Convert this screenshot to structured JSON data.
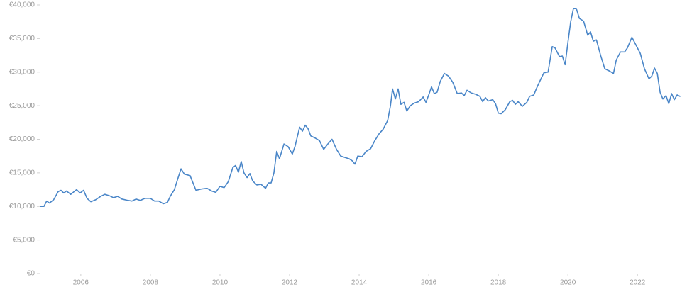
{
  "chart_data": {
    "type": "line",
    "x": [
      2004.84,
      2004.94,
      2005.02,
      2005.1,
      2005.22,
      2005.35,
      2005.43,
      2005.51,
      2005.59,
      2005.71,
      2005.88,
      2005.98,
      2006.08,
      2006.18,
      2006.29,
      2006.43,
      2006.57,
      2006.69,
      2006.82,
      2006.94,
      2007.06,
      2007.18,
      2007.35,
      2007.47,
      2007.59,
      2007.71,
      2007.84,
      2008.0,
      2008.12,
      2008.24,
      2008.37,
      2008.49,
      2008.57,
      2008.69,
      2008.78,
      2008.88,
      2008.98,
      2009.14,
      2009.31,
      2009.47,
      2009.63,
      2009.76,
      2009.88,
      2010.0,
      2010.12,
      2010.24,
      2010.37,
      2010.45,
      2010.53,
      2010.61,
      2010.69,
      2010.78,
      2010.86,
      2010.94,
      2011.06,
      2011.18,
      2011.31,
      2011.39,
      2011.47,
      2011.55,
      2011.63,
      2011.71,
      2011.84,
      2011.96,
      2012.08,
      2012.16,
      2012.29,
      2012.37,
      2012.45,
      2012.53,
      2012.61,
      2012.73,
      2012.86,
      2012.98,
      2013.1,
      2013.22,
      2013.35,
      2013.47,
      2013.59,
      2013.71,
      2013.8,
      2013.88,
      2013.96,
      2014.08,
      2014.2,
      2014.33,
      2014.45,
      2014.57,
      2014.69,
      2014.82,
      2014.9,
      2014.96,
      2015.04,
      2015.12,
      2015.2,
      2015.29,
      2015.37,
      2015.47,
      2015.59,
      2015.71,
      2015.84,
      2015.92,
      2016.0,
      2016.08,
      2016.16,
      2016.24,
      2016.33,
      2016.45,
      2016.57,
      2016.69,
      2016.82,
      2016.94,
      2017.02,
      2017.1,
      2017.22,
      2017.35,
      2017.47,
      2017.55,
      2017.63,
      2017.71,
      2017.84,
      2017.92,
      2018.0,
      2018.08,
      2018.2,
      2018.33,
      2018.41,
      2018.49,
      2018.57,
      2018.69,
      2018.82,
      2018.9,
      2019.02,
      2019.1,
      2019.18,
      2019.31,
      2019.43,
      2019.55,
      2019.63,
      2019.76,
      2019.84,
      2019.92,
      2020.0,
      2020.08,
      2020.16,
      2020.24,
      2020.33,
      2020.45,
      2020.57,
      2020.65,
      2020.73,
      2020.82,
      2020.94,
      2021.06,
      2021.18,
      2021.31,
      2021.39,
      2021.51,
      2021.63,
      2021.71,
      2021.84,
      2021.96,
      2022.08,
      2022.2,
      2022.33,
      2022.41,
      2022.49,
      2022.57,
      2022.65,
      2022.73,
      2022.82,
      2022.9,
      2022.98,
      2023.06,
      2023.14,
      2023.22
    ],
    "series": [
      {
        "color": "#4a86c8",
        "values": [
          10000,
          10000,
          10800,
          10500,
          11000,
          12200,
          12400,
          12000,
          12300,
          11800,
          12500,
          12000,
          12400,
          11200,
          10700,
          11000,
          11500,
          11800,
          11600,
          11300,
          11500,
          11100,
          10900,
          10800,
          11100,
          10900,
          11200,
          11200,
          10800,
          10800,
          10400,
          10600,
          11500,
          12500,
          14000,
          15600,
          14800,
          14600,
          12400,
          12600,
          12700,
          12300,
          12100,
          13000,
          12800,
          13700,
          15800,
          16100,
          15100,
          16700,
          15000,
          14300,
          14900,
          13800,
          13200,
          13300,
          12700,
          13500,
          13500,
          15000,
          18200,
          17100,
          19300,
          18900,
          17800,
          19000,
          21800,
          21200,
          22100,
          21600,
          20500,
          20200,
          19800,
          18500,
          19300,
          20000,
          18500,
          17500,
          17300,
          17100,
          16800,
          16300,
          17500,
          17400,
          18200,
          18600,
          19800,
          20800,
          21500,
          22800,
          25000,
          27500,
          26000,
          27500,
          25200,
          25500,
          24200,
          25000,
          25400,
          25600,
          26300,
          25500,
          26600,
          27800,
          26800,
          27000,
          28600,
          29800,
          29400,
          28500,
          26800,
          26900,
          26500,
          27300,
          26900,
          26700,
          26400,
          25600,
          26200,
          25700,
          25900,
          25300,
          23900,
          23800,
          24400,
          25600,
          25800,
          25200,
          25600,
          24900,
          25500,
          26400,
          26600,
          27600,
          28500,
          29900,
          30000,
          33800,
          33600,
          32300,
          32400,
          31100,
          34400,
          37500,
          39500,
          39500,
          38000,
          37600,
          35500,
          36000,
          34600,
          34800,
          32500,
          30500,
          30200,
          29800,
          31800,
          33000,
          33000,
          33600,
          35200,
          34000,
          32800,
          30500,
          29000,
          29400,
          30600,
          29800,
          27000,
          26000,
          26500,
          25300,
          26800,
          25900,
          26600,
          26400
        ]
      }
    ],
    "xlim": [
      2004.84,
      2023.24
    ],
    "xticks": [
      2006,
      2008,
      2010,
      2012,
      2014,
      2016,
      2018,
      2020,
      2022
    ],
    "ylim": [
      0,
      40000
    ],
    "yticks": [
      {
        "value": 0,
        "label": "€0"
      },
      {
        "value": 5000,
        "label": "€5,000"
      },
      {
        "value": 10000,
        "label": "€10,000"
      },
      {
        "value": 15000,
        "label": "€15,000"
      },
      {
        "value": 20000,
        "label": "€20,000"
      },
      {
        "value": 25000,
        "label": "€25,000"
      },
      {
        "value": 30000,
        "label": "€30,000"
      },
      {
        "value": 35000,
        "label": "€35,000"
      },
      {
        "value": 40000,
        "label": "€40,000"
      }
    ]
  }
}
